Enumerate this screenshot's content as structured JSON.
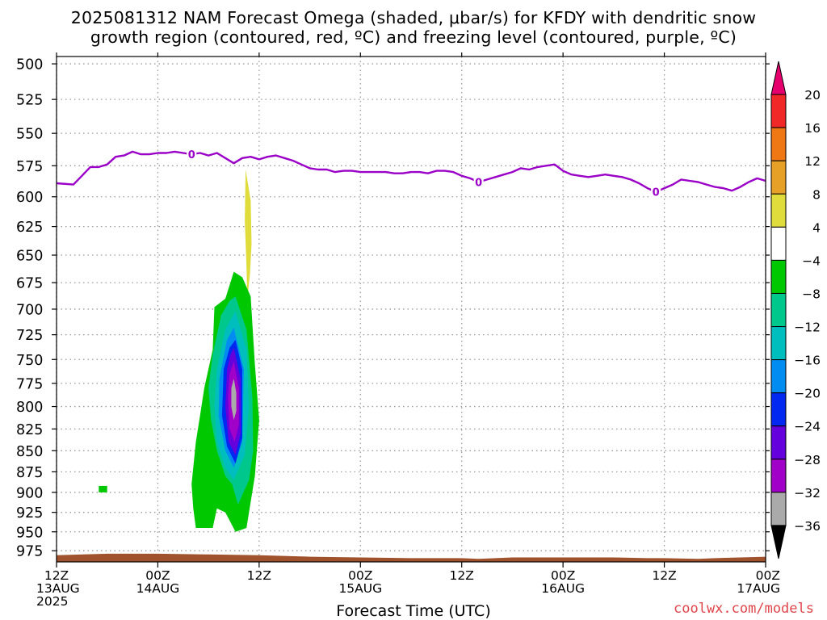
{
  "title": {
    "line1": "2025081312 NAM Forecast Omega (shaded, μbar/s) for KFDY with dendritic snow",
    "line2": "growth region (contoured, red, ºC) and freezing level (contoured, purple, ºC)"
  },
  "credit": "coolwx.com/models",
  "chart_data": {
    "type": "heatmap",
    "title": "2025081312 NAM Forecast Omega (shaded, μbar/s) for KFDY with dendritic snow growth region (contoured, red, ºC) and freezing level (contoured, purple, ºC)",
    "xlabel": "Forecast Time (UTC)",
    "ylabel": "",
    "x_range_hours": [
      0,
      84
    ],
    "y_range_mb": [
      495,
      990
    ],
    "y_scale": "log-pressure",
    "grid": true,
    "x_ticks": [
      {
        "hour": 0,
        "labels": [
          "12Z",
          "13AUG",
          "2025"
        ]
      },
      {
        "hour": 12,
        "labels": [
          "00Z",
          "14AUG"
        ]
      },
      {
        "hour": 24,
        "labels": [
          "12Z"
        ]
      },
      {
        "hour": 36,
        "labels": [
          "00Z",
          "15AUG"
        ]
      },
      {
        "hour": 48,
        "labels": [
          "12Z"
        ]
      },
      {
        "hour": 60,
        "labels": [
          "00Z",
          "16AUG"
        ]
      },
      {
        "hour": 72,
        "labels": [
          "12Z"
        ]
      },
      {
        "hour": 84,
        "labels": [
          "00Z",
          "17AUG"
        ]
      }
    ],
    "y_ticks": [
      500,
      525,
      550,
      575,
      600,
      625,
      650,
      675,
      700,
      725,
      750,
      775,
      800,
      825,
      850,
      875,
      900,
      925,
      950,
      975
    ],
    "freezing_level": {
      "color": "#9b00c8",
      "label": "0",
      "label_hours": [
        16,
        50,
        71
      ],
      "points": [
        [
          0,
          589
        ],
        [
          2,
          590
        ],
        [
          3,
          583
        ],
        [
          4,
          576
        ],
        [
          5,
          576
        ],
        [
          6,
          574
        ],
        [
          7,
          568
        ],
        [
          8,
          567
        ],
        [
          9,
          564
        ],
        [
          10,
          566
        ],
        [
          11,
          566
        ],
        [
          12,
          565
        ],
        [
          13,
          565
        ],
        [
          14,
          564
        ],
        [
          15,
          565
        ],
        [
          16,
          566
        ],
        [
          17,
          565
        ],
        [
          18,
          567
        ],
        [
          19,
          565
        ],
        [
          20,
          569
        ],
        [
          21,
          573
        ],
        [
          22,
          569
        ],
        [
          23,
          568
        ],
        [
          24,
          570
        ],
        [
          25,
          568
        ],
        [
          26,
          567
        ],
        [
          27,
          569
        ],
        [
          28,
          571
        ],
        [
          29,
          574
        ],
        [
          30,
          577
        ],
        [
          31,
          578
        ],
        [
          32,
          578
        ],
        [
          33,
          580
        ],
        [
          34,
          579
        ],
        [
          35,
          579
        ],
        [
          36,
          580
        ],
        [
          37,
          580
        ],
        [
          38,
          580
        ],
        [
          39,
          580
        ],
        [
          40,
          581
        ],
        [
          41,
          581
        ],
        [
          42,
          580
        ],
        [
          43,
          580
        ],
        [
          44,
          581
        ],
        [
          45,
          579
        ],
        [
          46,
          579
        ],
        [
          47,
          580
        ],
        [
          48,
          583
        ],
        [
          49,
          585
        ],
        [
          50,
          588
        ],
        [
          51,
          586
        ],
        [
          52,
          584
        ],
        [
          53,
          582
        ],
        [
          54,
          580
        ],
        [
          55,
          577
        ],
        [
          56,
          578
        ],
        [
          57,
          576
        ],
        [
          58,
          575
        ],
        [
          59,
          574
        ],
        [
          60,
          579
        ],
        [
          61,
          582
        ],
        [
          62,
          583
        ],
        [
          63,
          584
        ],
        [
          64,
          583
        ],
        [
          65,
          582
        ],
        [
          66,
          583
        ],
        [
          67,
          584
        ],
        [
          68,
          586
        ],
        [
          69,
          589
        ],
        [
          70,
          593
        ],
        [
          71,
          596
        ],
        [
          72,
          593
        ],
        [
          73,
          590
        ],
        [
          74,
          586
        ],
        [
          75,
          587
        ],
        [
          76,
          588
        ],
        [
          77,
          590
        ],
        [
          78,
          592
        ],
        [
          79,
          593
        ],
        [
          80,
          595
        ],
        [
          81,
          592
        ],
        [
          82,
          588
        ],
        [
          83,
          585
        ],
        [
          84,
          587
        ]
      ]
    },
    "omega_areas": [
      {
        "level": "4 to 8",
        "color": "#e0dc3c",
        "outline": [
          [
            22.4,
            578
          ],
          [
            23.0,
            603
          ],
          [
            23.1,
            640
          ],
          [
            22.9,
            668
          ],
          [
            22.6,
            690
          ],
          [
            22.5,
            660
          ],
          [
            22.3,
            620
          ]
        ]
      },
      {
        "level": "-8 to -4",
        "color": "#00c800",
        "outline": [
          [
            22.0,
            670
          ],
          [
            23.0,
            688
          ],
          [
            23.5,
            755
          ],
          [
            24.0,
            815
          ],
          [
            23.5,
            880
          ],
          [
            22.5,
            945
          ],
          [
            21.2,
            950
          ],
          [
            20.0,
            925
          ],
          [
            19.0,
            920
          ],
          [
            18.5,
            945
          ],
          [
            16.5,
            945
          ],
          [
            16.2,
            920
          ],
          [
            16.0,
            890
          ],
          [
            16.5,
            840
          ],
          [
            17.0,
            810
          ],
          [
            17.5,
            780
          ],
          [
            18.5,
            740
          ],
          [
            18.7,
            698
          ],
          [
            20.0,
            690
          ],
          [
            21.0,
            665
          ]
        ]
      },
      {
        "level": "-8 to -4",
        "color": "#00c800",
        "outline": [
          [
            5.0,
            892
          ],
          [
            6.0,
            892
          ],
          [
            6.0,
            900
          ],
          [
            5.0,
            900
          ]
        ]
      },
      {
        "level": "-12 to -8",
        "color": "#00c88c",
        "outline": [
          [
            21.2,
            688
          ],
          [
            22.5,
            720
          ],
          [
            23.2,
            790
          ],
          [
            23.3,
            850
          ],
          [
            22.8,
            885
          ],
          [
            21.5,
            915
          ],
          [
            20.8,
            890
          ],
          [
            20.0,
            880
          ],
          [
            19.0,
            850
          ],
          [
            18.3,
            815
          ],
          [
            18.0,
            780
          ],
          [
            18.5,
            745
          ],
          [
            19.5,
            706
          ],
          [
            20.5,
            692
          ]
        ]
      },
      {
        "level": "-16 to -12",
        "color": "#00bebe",
        "outline": [
          [
            21.2,
            702
          ],
          [
            22.5,
            740
          ],
          [
            22.8,
            800
          ],
          [
            22.3,
            855
          ],
          [
            21.0,
            885
          ],
          [
            20.0,
            870
          ],
          [
            19.0,
            840
          ],
          [
            18.7,
            800
          ],
          [
            19.0,
            760
          ],
          [
            20.0,
            720
          ]
        ]
      },
      {
        "level": "-20 to -16",
        "color": "#008cf0",
        "outline": [
          [
            21.0,
            718
          ],
          [
            22.2,
            760
          ],
          [
            22.0,
            840
          ],
          [
            21.0,
            870
          ],
          [
            20.0,
            850
          ],
          [
            19.2,
            810
          ],
          [
            19.3,
            770
          ],
          [
            20.2,
            730
          ]
        ]
      },
      {
        "level": "-24 to -20",
        "color": "#0028f0",
        "outline": [
          [
            21.2,
            730
          ],
          [
            22.0,
            760
          ],
          [
            22.0,
            835
          ],
          [
            21.2,
            865
          ],
          [
            20.2,
            845
          ],
          [
            19.6,
            810
          ],
          [
            19.8,
            760
          ],
          [
            20.5,
            738
          ]
        ]
      },
      {
        "level": "-28 to -24",
        "color": "#6400dc",
        "outline": [
          [
            21.0,
            738
          ],
          [
            21.8,
            770
          ],
          [
            21.8,
            830
          ],
          [
            21.2,
            855
          ],
          [
            20.4,
            840
          ],
          [
            20.0,
            800
          ],
          [
            20.2,
            760
          ],
          [
            20.6,
            745
          ]
        ]
      },
      {
        "level": "-32 to -28",
        "color": "#a000c8",
        "outline": [
          [
            21.0,
            752
          ],
          [
            21.6,
            780
          ],
          [
            21.6,
            820
          ],
          [
            21.1,
            840
          ],
          [
            20.5,
            825
          ],
          [
            20.3,
            790
          ],
          [
            20.5,
            765
          ]
        ]
      },
      {
        "level": "-36 to -32",
        "color": "#aaaaaa",
        "outline": [
          [
            21.0,
            770
          ],
          [
            21.3,
            785
          ],
          [
            21.3,
            805
          ],
          [
            21.0,
            815
          ],
          [
            20.7,
            800
          ],
          [
            20.7,
            780
          ]
        ]
      }
    ],
    "terrain": {
      "color": "#a0522d",
      "top_mb": [
        [
          0,
          981
        ],
        [
          6,
          979
        ],
        [
          12,
          979
        ],
        [
          18,
          980
        ],
        [
          24,
          981
        ],
        [
          30,
          983
        ],
        [
          36,
          984
        ],
        [
          42,
          985
        ],
        [
          48,
          985
        ],
        [
          50,
          986
        ],
        [
          54,
          984
        ],
        [
          60,
          984
        ],
        [
          66,
          984
        ],
        [
          70,
          985
        ],
        [
          72,
          985
        ],
        [
          76,
          986
        ],
        [
          78,
          985
        ],
        [
          84,
          983
        ]
      ]
    },
    "colorbar": {
      "labels": [
        "20",
        "16",
        "12",
        "8",
        "4",
        "−4",
        "−8",
        "−12",
        "−16",
        "−20",
        "−24",
        "−28",
        "−32",
        "−36"
      ],
      "colors": [
        "#e6006e",
        "#f02828",
        "#f07814",
        "#e6a028",
        "#e0dc3c",
        "#ffffff",
        "#00c800",
        "#00c88c",
        "#00bebe",
        "#008cf0",
        "#0028f0",
        "#6400dc",
        "#a000c8",
        "#aaaaaa",
        "#000000"
      ]
    }
  }
}
